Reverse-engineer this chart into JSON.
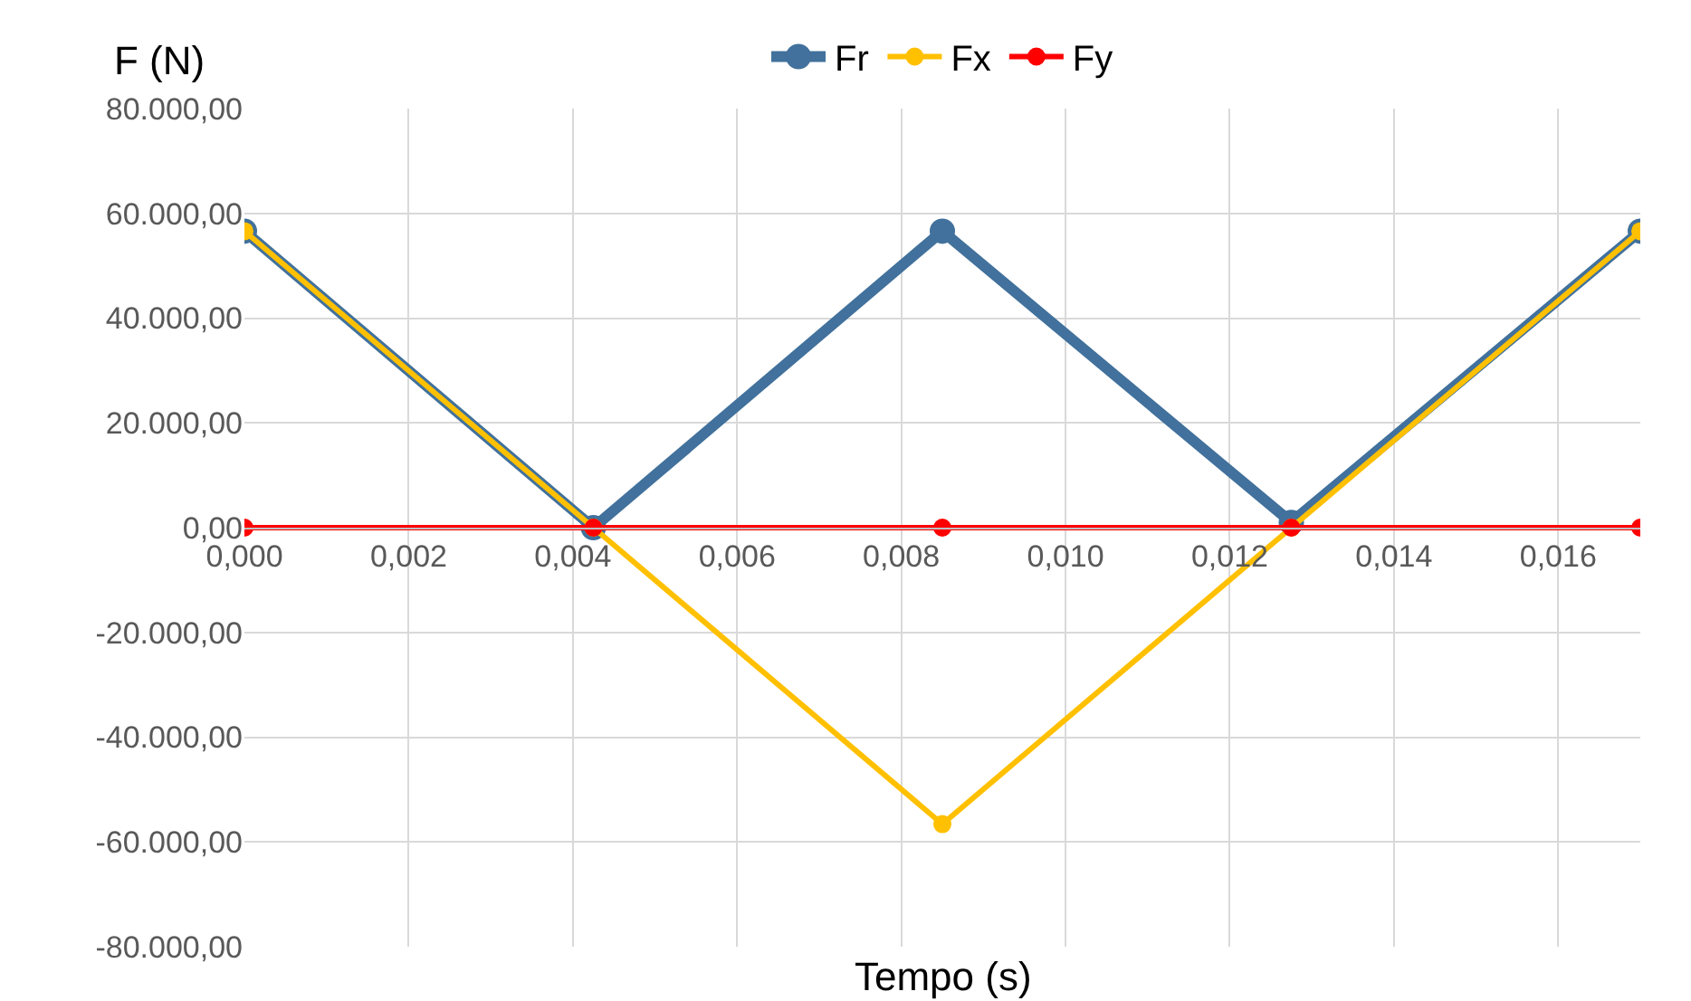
{
  "chart_data": {
    "type": "line",
    "xlabel": "Tempo (s)",
    "ylabel": "F (N)",
    "x": [
      0,
      0.00425,
      0.0085,
      0.01275,
      0.017
    ],
    "series": [
      {
        "name": "Fr",
        "color": "#41719c",
        "values": [
          56600,
          0,
          56600,
          1000,
          56600
        ]
      },
      {
        "name": "Fx",
        "color": "#ffc000",
        "values": [
          56600,
          0,
          -56600,
          0,
          56600
        ]
      },
      {
        "name": "Fy",
        "color": "#ff0000",
        "values": [
          0,
          0,
          0,
          0,
          0
        ]
      }
    ],
    "xlim": [
      0,
      0.017
    ],
    "ylim": [
      -80000,
      80000
    ],
    "xticks": [
      {
        "value": 0,
        "label": "0,000"
      },
      {
        "value": 0.002,
        "label": "0,002"
      },
      {
        "value": 0.004,
        "label": "0,004"
      },
      {
        "value": 0.006,
        "label": "0,006"
      },
      {
        "value": 0.008,
        "label": "0,008"
      },
      {
        "value": 0.01,
        "label": "0,010"
      },
      {
        "value": 0.012,
        "label": "0,012"
      },
      {
        "value": 0.014,
        "label": "0,014"
      },
      {
        "value": 0.016,
        "label": "0,016"
      }
    ],
    "yticks": [
      {
        "value": -80000,
        "label": "-80.000,00"
      },
      {
        "value": -60000,
        "label": "-60.000,00"
      },
      {
        "value": -40000,
        "label": "-40.000,00"
      },
      {
        "value": -20000,
        "label": "-20.000,00"
      },
      {
        "value": 0,
        "label": "0,00"
      },
      {
        "value": 20000,
        "label": "20.000,00"
      },
      {
        "value": 40000,
        "label": "40.000,00"
      },
      {
        "value": 60000,
        "label": "60.000,00"
      },
      {
        "value": 80000,
        "label": "80.000,00"
      }
    ],
    "grid": true,
    "legend": "top",
    "marker": "circle",
    "line_style": "solid"
  }
}
